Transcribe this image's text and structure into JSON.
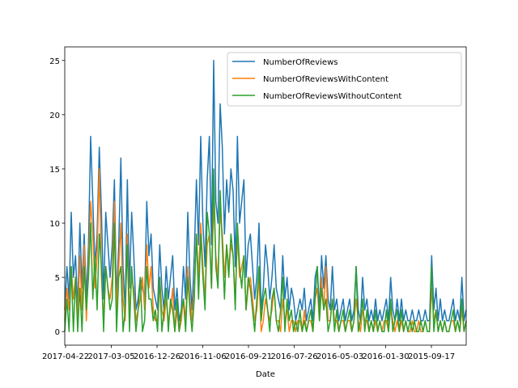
{
  "chart_data": {
    "type": "line",
    "title": "",
    "xlabel": "Date",
    "ylabel": "",
    "ylim": [
      -1.25,
      26.25
    ],
    "yticks": [
      0,
      5,
      10,
      15,
      20,
      25
    ],
    "xtick_labels": [
      "2017-04-22",
      "2017-03-05",
      "2016-12-26",
      "2016-11-06",
      "2016-09-21",
      "2016-07-26",
      "2016-05-03",
      "2016-01-30",
      "2015-09-17"
    ],
    "legend_position": "upper-right",
    "grid": false,
    "series": [
      {
        "name": "NumberOfReviews",
        "color": "#1f77b4",
        "values": [
          2,
          6,
          3,
          11,
          5,
          7,
          2,
          10,
          4,
          9,
          3,
          8,
          18,
          12,
          6,
          9,
          17,
          11,
          3,
          11,
          8,
          5,
          8,
          14,
          3,
          8,
          16,
          6,
          2,
          14,
          4,
          11,
          7,
          2,
          3,
          5,
          4,
          3,
          12,
          7,
          9,
          4,
          3,
          2,
          8,
          4,
          2,
          6,
          3,
          5,
          7,
          2,
          4,
          1,
          2,
          6,
          3,
          11,
          5,
          2,
          7,
          14,
          8,
          18,
          10,
          6,
          14,
          18,
          8,
          25,
          12,
          10,
          21,
          17,
          9,
          14,
          11,
          15,
          13,
          6,
          18,
          10,
          12,
          14,
          5,
          8,
          9,
          6,
          3,
          5,
          10,
          2,
          4,
          8,
          6,
          3,
          5,
          8,
          4,
          3,
          2,
          7,
          3,
          5,
          2,
          4,
          3,
          1,
          2,
          3,
          2,
          4,
          1,
          2,
          3,
          1,
          5,
          6,
          2,
          7,
          4,
          7,
          3,
          2,
          6,
          2,
          3,
          1,
          2,
          3,
          1,
          2,
          3,
          1,
          2,
          6,
          2,
          1,
          5,
          2,
          3,
          1,
          2,
          1,
          3,
          1,
          2,
          1,
          2,
          3,
          1,
          5,
          2,
          1,
          3,
          1,
          3,
          1,
          2,
          1,
          1,
          2,
          1,
          1,
          2,
          1,
          1,
          2,
          1,
          1,
          7,
          2,
          4,
          1,
          3,
          1,
          2,
          1,
          1,
          2,
          3,
          1,
          2,
          1,
          5,
          1,
          2
        ]
      },
      {
        "name": "NumberOfReviewsWithContent",
        "color": "#ff7f0e",
        "values": [
          1,
          4,
          2,
          6,
          3,
          5,
          1,
          7,
          2,
          8,
          1,
          6,
          12,
          9,
          4,
          7,
          15,
          5,
          1,
          6,
          4,
          3,
          5,
          12,
          2,
          6,
          10,
          3,
          1,
          9,
          2,
          5,
          4,
          1,
          2,
          3,
          5,
          2,
          8,
          4,
          6,
          2,
          1,
          1,
          5,
          2,
          1,
          3,
          1,
          2,
          4,
          0,
          2,
          0,
          1,
          3,
          1,
          6,
          3,
          1,
          4,
          9,
          5,
          10,
          6,
          3,
          8,
          9,
          4,
          12,
          7,
          5,
          11,
          9,
          5,
          8,
          6,
          8,
          7,
          3,
          9,
          5,
          6,
          7,
          2,
          4,
          5,
          3,
          1,
          2,
          5,
          0,
          1,
          3,
          2,
          1,
          2,
          4,
          1,
          1,
          0,
          3,
          1,
          2,
          0,
          1,
          1,
          0,
          1,
          1,
          0,
          2,
          0,
          1,
          1,
          0,
          3,
          4,
          1,
          5,
          2,
          6,
          1,
          1,
          3,
          1,
          1,
          0,
          1,
          1,
          0,
          1,
          1,
          0,
          1,
          3,
          1,
          0,
          2,
          1,
          1,
          0,
          1,
          0,
          1,
          0,
          1,
          0,
          1,
          1,
          0,
          2,
          1,
          0,
          1,
          0,
          1,
          0,
          1,
          0,
          0,
          1,
          0,
          0,
          1,
          0,
          0,
          1,
          0,
          0,
          4,
          1,
          2,
          0,
          1,
          0,
          1,
          0,
          0,
          1,
          1,
          0,
          1,
          0,
          2,
          0,
          1
        ]
      },
      {
        "name": "NumberOfReviewsWithoutContent",
        "color": "#2ca02c",
        "values": [
          0,
          3,
          0,
          6,
          0,
          5,
          0,
          4,
          0,
          6,
          2,
          5,
          10,
          3,
          7,
          2,
          9,
          6,
          0,
          6,
          4,
          2,
          3,
          10,
          0,
          5,
          6,
          0,
          2,
          8,
          0,
          6,
          3,
          0,
          2,
          5,
          0,
          1,
          6,
          3,
          3,
          1,
          2,
          0,
          5,
          0,
          2,
          4,
          0,
          3,
          2,
          0,
          3,
          0,
          2,
          3,
          0,
          5,
          2,
          0,
          3,
          9,
          3,
          9,
          5,
          2,
          11,
          9,
          4,
          15,
          6,
          4,
          13,
          8,
          3,
          8,
          5,
          9,
          7,
          2,
          10,
          6,
          4,
          7,
          2,
          5,
          4,
          2,
          0,
          3,
          6,
          1,
          3,
          4,
          2,
          0,
          3,
          4,
          1,
          0,
          2,
          5,
          0,
          3,
          1,
          2,
          0,
          1,
          0,
          2,
          0,
          1,
          0,
          1,
          2,
          0,
          3,
          6,
          1,
          4,
          2,
          3,
          0,
          1,
          3,
          0,
          2,
          0,
          1,
          2,
          0,
          1,
          2,
          0,
          1,
          6,
          0,
          1,
          3,
          0,
          2,
          0,
          1,
          0,
          2,
          0,
          1,
          0,
          0,
          2,
          0,
          3,
          0,
          1,
          2,
          0,
          2,
          0,
          1,
          0,
          1,
          0,
          1,
          0,
          0,
          1,
          0,
          1,
          0,
          0,
          6,
          0,
          2,
          0,
          1,
          0,
          1,
          0,
          0,
          1,
          2,
          0,
          1,
          0,
          3,
          0,
          1
        ]
      }
    ]
  }
}
